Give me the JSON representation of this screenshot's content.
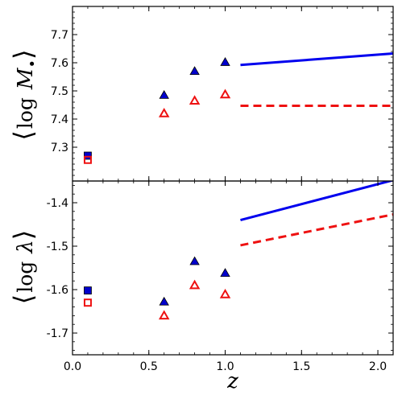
{
  "chart_data": [
    {
      "type": "scatter",
      "panel": "top",
      "ylabel": {
        "open": "⟨",
        "log": "log",
        "symbol": "M",
        "sub": "•",
        "close": "⟩"
      },
      "xlim": [
        0,
        2.1
      ],
      "ylim": [
        7.18,
        7.8
      ],
      "y_ticks": [
        7.3,
        7.4,
        7.5,
        7.6,
        7.7
      ],
      "y_tick_labels": [
        "7.3",
        "7.4",
        "7.5",
        "7.6",
        "7.7"
      ],
      "grid": false,
      "legend": "none",
      "series": [
        {
          "marker": "filled-square",
          "color": "#0000cc",
          "points": [
            [
              0.1,
              7.27
            ]
          ]
        },
        {
          "marker": "open-square",
          "color": "#ee1111",
          "points": [
            [
              0.1,
              7.255
            ]
          ]
        },
        {
          "marker": "filled-triangle",
          "color": "#0000cc",
          "points": [
            [
              0.6,
              7.485
            ],
            [
              0.8,
              7.57
            ],
            [
              1.0,
              7.602
            ]
          ]
        },
        {
          "marker": "open-triangle",
          "color": "#ee1111",
          "points": [
            [
              0.6,
              7.42
            ],
            [
              0.8,
              7.465
            ],
            [
              1.0,
              7.487
            ]
          ]
        },
        {
          "marker": "solid-line",
          "color": "#0000ee",
          "points": [
            [
              1.1,
              7.592
            ],
            [
              2.1,
              7.633
            ]
          ]
        },
        {
          "marker": "dashed-line",
          "color": "#ee1111",
          "points": [
            [
              1.1,
              7.447
            ],
            [
              2.1,
              7.447
            ]
          ]
        }
      ]
    },
    {
      "type": "scatter",
      "panel": "bottom",
      "ylabel": {
        "open": "⟨",
        "log": "log",
        "symbol": "λ",
        "close": "⟩"
      },
      "xlabel": "z",
      "xlim": [
        0,
        2.1
      ],
      "ylim": [
        -1.75,
        -1.35
      ],
      "x_ticks": [
        0.0,
        0.5,
        1.0,
        1.5,
        2.0
      ],
      "x_tick_labels": [
        "0.0",
        "0.5",
        "1.0",
        "1.5",
        "2.0"
      ],
      "y_ticks": [
        -1.7,
        -1.6,
        -1.5,
        -1.4
      ],
      "y_tick_labels": [
        "-1.7",
        "-1.6",
        "-1.5",
        "-1.4"
      ],
      "grid": false,
      "legend": "none",
      "series": [
        {
          "marker": "filled-square",
          "color": "#0000cc",
          "points": [
            [
              0.1,
              -1.602
            ]
          ]
        },
        {
          "marker": "open-square",
          "color": "#ee1111",
          "points": [
            [
              0.1,
              -1.63
            ]
          ]
        },
        {
          "marker": "filled-triangle",
          "color": "#0000cc",
          "points": [
            [
              0.6,
              -1.628
            ],
            [
              0.8,
              -1.535
            ],
            [
              1.0,
              -1.562
            ]
          ]
        },
        {
          "marker": "open-triangle",
          "color": "#ee1111",
          "points": [
            [
              0.6,
              -1.66
            ],
            [
              0.8,
              -1.59
            ],
            [
              1.0,
              -1.611
            ]
          ]
        },
        {
          "marker": "solid-line",
          "color": "#0000ee",
          "points": [
            [
              1.1,
              -1.44
            ],
            [
              2.1,
              -1.348
            ]
          ]
        },
        {
          "marker": "dashed-line",
          "color": "#ee1111",
          "points": [
            [
              1.1,
              -1.498
            ],
            [
              2.1,
              -1.427
            ]
          ]
        }
      ]
    }
  ]
}
